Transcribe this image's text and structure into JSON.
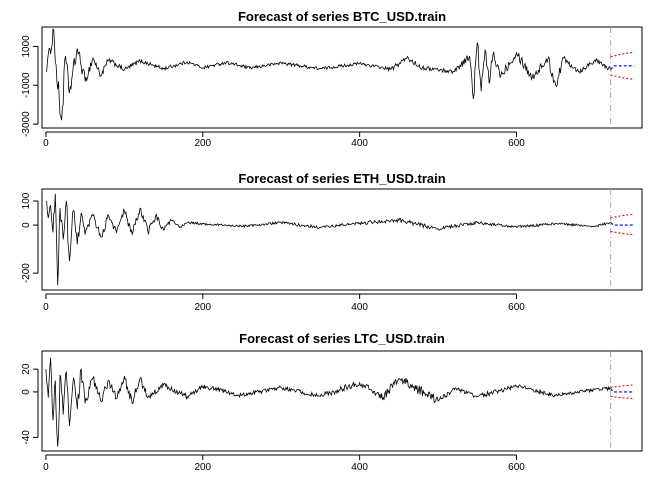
{
  "chart_data": [
    {
      "type": "line",
      "title": "Forecast of series BTC_USD.train",
      "xlabel": "",
      "ylabel": "",
      "xlim": [
        -5,
        760
      ],
      "ylim": [
        -3200,
        2000
      ],
      "xticks": [
        0,
        200,
        400,
        600
      ],
      "yticks": [
        1000,
        -1000,
        -3000
      ],
      "train_end": 720,
      "forecast_horizon": 30,
      "forecast_mean": 0,
      "forecast_lower": -700,
      "forecast_upper": 700,
      "series": [
        {
          "name": "",
          "x": [
            0,
            5,
            10,
            15,
            20,
            25,
            30,
            40,
            50,
            60,
            70,
            80,
            100,
            120,
            150,
            180,
            200,
            230,
            260,
            300,
            350,
            400,
            440,
            460,
            480,
            520,
            540,
            545,
            550,
            555,
            560,
            565,
            570,
            580,
            600,
            620,
            640,
            650,
            660,
            680,
            700,
            720
          ],
          "y": [
            -300,
            900,
            1800,
            -1200,
            -2800,
            500,
            -1400,
            900,
            -800,
            400,
            -500,
            300,
            -200,
            250,
            -150,
            200,
            -100,
            180,
            -120,
            150,
            -150,
            120,
            -180,
            400,
            -100,
            -300,
            500,
            -1700,
            1200,
            -1300,
            800,
            -900,
            600,
            -500,
            700,
            -600,
            350,
            -1000,
            400,
            -300,
            300,
            -200
          ]
        }
      ]
    },
    {
      "type": "line",
      "title": "Forecast of series ETH_USD.train",
      "xlabel": "",
      "ylabel": "",
      "xlim": [
        -5,
        760
      ],
      "ylim": [
        -270,
        150
      ],
      "xticks": [
        0,
        200,
        400,
        600
      ],
      "yticks": [
        100,
        0,
        -200
      ],
      "train_end": 720,
      "forecast_horizon": 30,
      "forecast_mean": 0,
      "forecast_lower": -40,
      "forecast_upper": 45,
      "series": [
        {
          "name": "",
          "x": [
            0,
            3,
            6,
            9,
            12,
            15,
            18,
            22,
            26,
            30,
            35,
            40,
            45,
            50,
            60,
            70,
            80,
            90,
            100,
            110,
            120,
            130,
            140,
            150,
            160,
            170,
            180,
            200,
            250,
            300,
            350,
            400,
            450,
            500,
            550,
            600,
            650,
            700,
            720
          ],
          "y": [
            100,
            30,
            80,
            -30,
            130,
            -250,
            70,
            -60,
            100,
            -150,
            60,
            -80,
            50,
            -40,
            40,
            -50,
            40,
            -30,
            60,
            -40,
            70,
            -30,
            40,
            -20,
            20,
            -10,
            10,
            5,
            -5,
            10,
            -10,
            8,
            20,
            -15,
            10,
            -8,
            6,
            -5,
            10
          ]
        }
      ]
    },
    {
      "type": "line",
      "title": "Forecast of series LTC_USD.train",
      "xlabel": "",
      "ylabel": "",
      "xlim": [
        -5,
        760
      ],
      "ylim": [
        -52,
        36
      ],
      "xticks": [
        0,
        200,
        400,
        600
      ],
      "yticks": [
        20,
        0,
        -40
      ],
      "train_end": 720,
      "forecast_horizon": 30,
      "forecast_mean": 0,
      "forecast_lower": -6,
      "forecast_upper": 6,
      "series": [
        {
          "name": "",
          "x": [
            0,
            3,
            6,
            9,
            12,
            15,
            18,
            22,
            26,
            30,
            35,
            40,
            45,
            50,
            60,
            70,
            80,
            90,
            100,
            110,
            120,
            130,
            150,
            180,
            200,
            250,
            300,
            350,
            400,
            430,
            450,
            500,
            520,
            550,
            600,
            650,
            700,
            720
          ],
          "y": [
            20,
            -5,
            30,
            -25,
            10,
            -48,
            15,
            -20,
            18,
            -30,
            12,
            -15,
            20,
            -10,
            12,
            -8,
            10,
            -6,
            14,
            -10,
            12,
            -5,
            6,
            -4,
            5,
            -3,
            4,
            -4,
            8,
            -5,
            12,
            -8,
            3,
            -4,
            5,
            -3,
            2,
            3
          ]
        }
      ]
    }
  ]
}
